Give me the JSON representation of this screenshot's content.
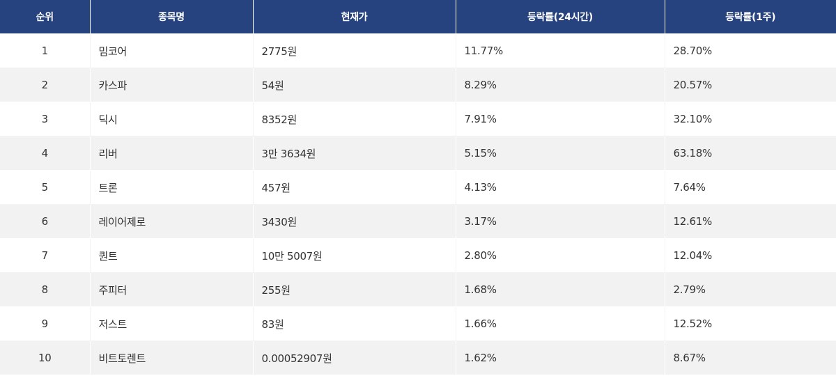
{
  "table": {
    "headers": [
      "순위",
      "종목명",
      "현재가",
      "등락률(24시간)",
      "등락률(1주)"
    ],
    "rows": [
      {
        "rank": "1",
        "name": "밈코어",
        "price": "2775원",
        "change_24h": "11.77%",
        "change_1w": "28.70%"
      },
      {
        "rank": "2",
        "name": "카스파",
        "price": "54원",
        "change_24h": "8.29%",
        "change_1w": "20.57%"
      },
      {
        "rank": "3",
        "name": "딕시",
        "price": "8352원",
        "change_24h": "7.91%",
        "change_1w": "32.10%"
      },
      {
        "rank": "4",
        "name": "리버",
        "price": "3만 3634원",
        "change_24h": "5.15%",
        "change_1w": "63.18%"
      },
      {
        "rank": "5",
        "name": "트론",
        "price": "457원",
        "change_24h": "4.13%",
        "change_1w": "7.64%"
      },
      {
        "rank": "6",
        "name": "레이어제로",
        "price": "3430원",
        "change_24h": "3.17%",
        "change_1w": "12.61%"
      },
      {
        "rank": "7",
        "name": "퀀트",
        "price": "10만 5007원",
        "change_24h": "2.80%",
        "change_1w": "12.04%"
      },
      {
        "rank": "8",
        "name": "주피터",
        "price": "255원",
        "change_24h": "1.68%",
        "change_1w": "2.79%"
      },
      {
        "rank": "9",
        "name": "저스트",
        "price": "83원",
        "change_24h": "1.66%",
        "change_1w": "12.52%"
      },
      {
        "rank": "10",
        "name": "비트토렌트",
        "price": "0.00052907원",
        "change_24h": "1.62%",
        "change_1w": "8.67%"
      }
    ]
  },
  "colors": {
    "header_bg": "#26427f",
    "header_text": "#ffffff",
    "row_alt_bg": "#f2f2f2",
    "row_bg": "#ffffff",
    "text": "#333333"
  }
}
